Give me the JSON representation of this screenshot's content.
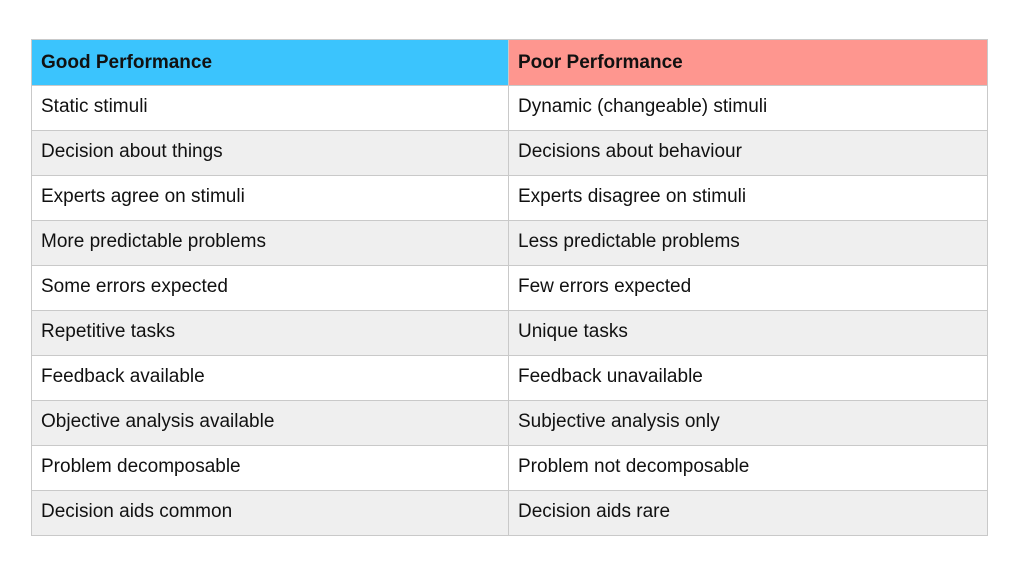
{
  "table": {
    "headers": [
      {
        "label": "Good Performance",
        "color": "#3bc4fd"
      },
      {
        "label": "Poor Performance",
        "color": "#fe968f"
      }
    ],
    "rows": [
      [
        "Static stimuli",
        "Dynamic (changeable) stimuli"
      ],
      [
        "Decision about things",
        "Decisions about behaviour"
      ],
      [
        "Experts agree on stimuli",
        "Experts disagree on stimuli"
      ],
      [
        "More predictable problems",
        "Less predictable problems"
      ],
      [
        "Some errors expected",
        "Few errors expected"
      ],
      [
        "Repetitive tasks",
        "Unique tasks"
      ],
      [
        "Feedback available",
        "Feedback unavailable"
      ],
      [
        "Objective analysis available",
        "Subjective analysis only"
      ],
      [
        "Problem decomposable",
        "Problem not decomposable"
      ],
      [
        "Decision aids common",
        "Decision aids rare"
      ]
    ]
  }
}
